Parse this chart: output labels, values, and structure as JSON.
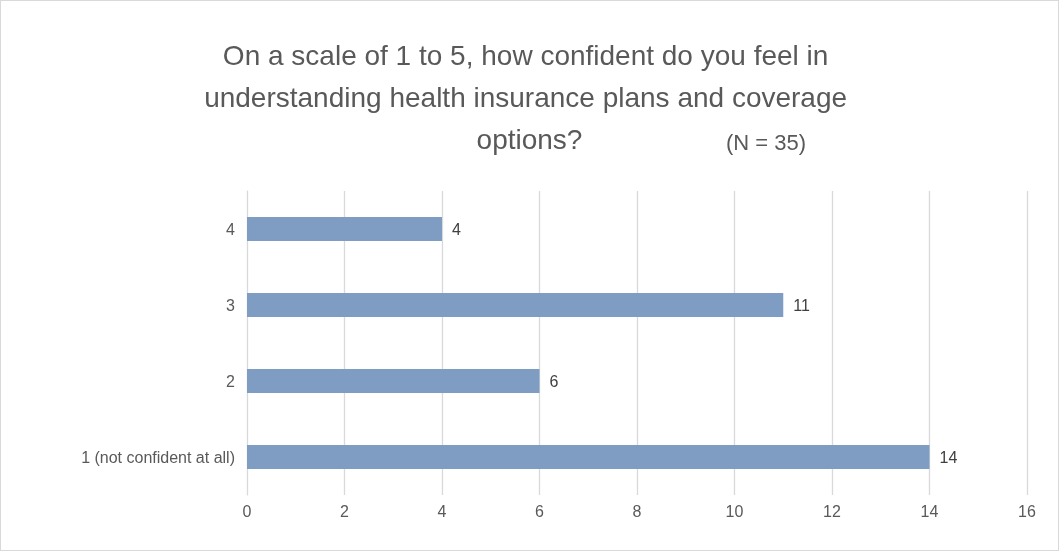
{
  "chart_data": {
    "type": "bar",
    "orientation": "horizontal",
    "title": "On a scale of 1 to 5, how confident do you feel in understanding health insurance plans and coverage options?",
    "annotations": [
      "(N = 35)"
    ],
    "categories": [
      "4",
      "3",
      "2",
      "1 (not confident at all)"
    ],
    "values": [
      4,
      11,
      6,
      14
    ],
    "color": "#7f9dc3",
    "xlim": [
      0,
      16
    ],
    "xticks": [
      0,
      2,
      4,
      6,
      8,
      10,
      12,
      14,
      16
    ],
    "grid": "x",
    "data_labels": true
  }
}
